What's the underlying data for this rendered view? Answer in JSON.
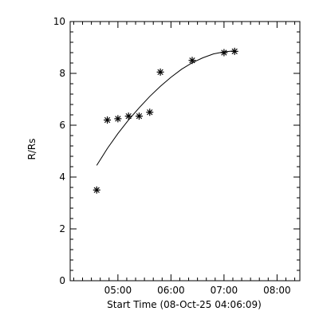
{
  "chart_data": {
    "type": "scatter",
    "title": "",
    "xlabel": "Start Time (08-Oct-25 04:06:09)",
    "ylabel": "R/Rs",
    "x_units": "elapsed time from the start time, in hours",
    "xlim": [
      0,
      4.33
    ],
    "ylim": [
      0,
      10
    ],
    "x_ticks": [
      {
        "value": 0.9,
        "label": "05:00"
      },
      {
        "value": 1.9,
        "label": "06:00"
      },
      {
        "value": 2.9,
        "label": "07:00"
      },
      {
        "value": 3.9,
        "label": "08:00"
      }
    ],
    "y_ticks": [
      {
        "value": 0,
        "label": "0"
      },
      {
        "value": 2,
        "label": "2"
      },
      {
        "value": 4,
        "label": "4"
      },
      {
        "value": 6,
        "label": "6"
      },
      {
        "value": 8,
        "label": "8"
      },
      {
        "value": 10,
        "label": "10"
      }
    ],
    "series": [
      {
        "marker": "asterisk",
        "points": [
          {
            "x": 0.5,
            "y": 3.5
          },
          {
            "x": 0.7,
            "y": 6.2
          },
          {
            "x": 0.9,
            "y": 6.25
          },
          {
            "x": 1.1,
            "y": 6.35
          },
          {
            "x": 1.3,
            "y": 6.35
          },
          {
            "x": 1.5,
            "y": 6.5
          },
          {
            "x": 1.7,
            "y": 8.05
          },
          {
            "x": 2.3,
            "y": 8.5
          },
          {
            "x": 2.9,
            "y": 8.8
          },
          {
            "x": 3.1,
            "y": 8.85
          }
        ]
      },
      {
        "style": "line",
        "points": [
          {
            "x": 0.5,
            "y": 4.45
          },
          {
            "x": 0.7,
            "y": 5.1
          },
          {
            "x": 0.9,
            "y": 5.68
          },
          {
            "x": 1.1,
            "y": 6.2
          },
          {
            "x": 1.3,
            "y": 6.67
          },
          {
            "x": 1.5,
            "y": 7.11
          },
          {
            "x": 1.7,
            "y": 7.5
          },
          {
            "x": 1.9,
            "y": 7.85
          },
          {
            "x": 2.1,
            "y": 8.16
          },
          {
            "x": 2.3,
            "y": 8.41
          },
          {
            "x": 2.5,
            "y": 8.6
          },
          {
            "x": 2.7,
            "y": 8.75
          },
          {
            "x": 2.9,
            "y": 8.83
          },
          {
            "x": 3.1,
            "y": 8.87
          }
        ]
      }
    ],
    "grid": false,
    "legend": "none",
    "minor_ticks": true
  }
}
